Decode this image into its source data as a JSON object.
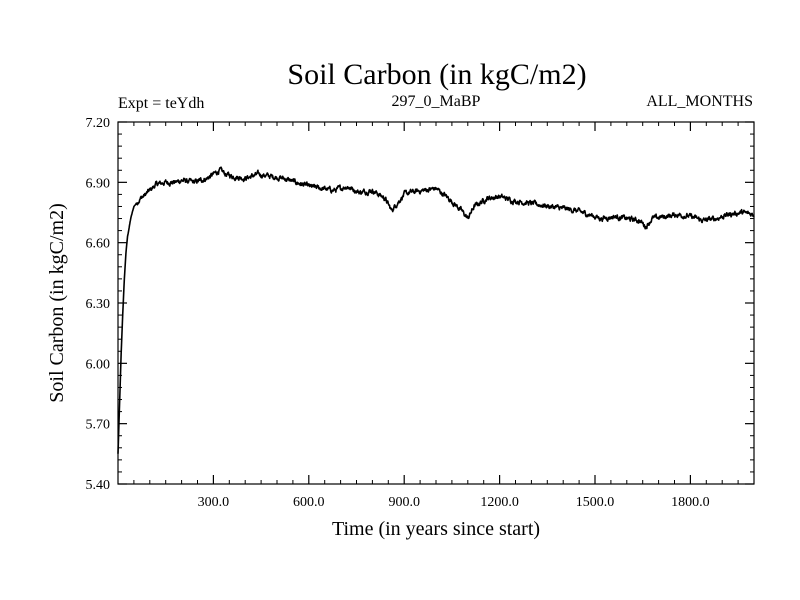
{
  "chart_data": {
    "type": "line",
    "title": "Soil Carbon (in kgC/m2)",
    "subtitle_left": "Expt = teYdh",
    "subtitle_center": "297_0_MaBP",
    "subtitle_right": "ALL_MONTHS",
    "xlabel": "Time (in years since start)",
    "ylabel": "Soil Carbon (in kgC/m2)",
    "xlim": [
      0,
      2000
    ],
    "ylim": [
      5.4,
      7.2
    ],
    "x_ticks": [
      300,
      600,
      900,
      1200,
      1500,
      1800
    ],
    "x_tick_labels": [
      "300.0",
      "600.0",
      "900.0",
      "1200.0",
      "1500.0",
      "1800.0"
    ],
    "y_ticks": [
      5.4,
      5.7,
      6.0,
      6.3,
      6.6,
      6.9,
      7.2
    ],
    "y_tick_labels": [
      "5.40",
      "5.70",
      "6.00",
      "6.30",
      "6.60",
      "6.90",
      "7.20"
    ],
    "grid": false,
    "series": [
      {
        "name": "Soil Carbon",
        "color": "#000000",
        "x": [
          0,
          5,
          10,
          15,
          20,
          25,
          30,
          40,
          50,
          60,
          70,
          80,
          100,
          120,
          150,
          180,
          200,
          240,
          280,
          300,
          320,
          340,
          360,
          400,
          440,
          480,
          520,
          560,
          600,
          640,
          680,
          720,
          760,
          800,
          840,
          860,
          880,
          900,
          920,
          960,
          1000,
          1040,
          1080,
          1100,
          1120,
          1160,
          1200,
          1240,
          1280,
          1320,
          1360,
          1400,
          1440,
          1480,
          1520,
          1560,
          1600,
          1640,
          1660,
          1680,
          1720,
          1760,
          1800,
          1840,
          1880,
          1920,
          1960,
          2000
        ],
        "values": [
          5.55,
          5.8,
          6.05,
          6.25,
          6.42,
          6.55,
          6.63,
          6.72,
          6.78,
          6.8,
          6.82,
          6.83,
          6.86,
          6.89,
          6.9,
          6.9,
          6.91,
          6.9,
          6.92,
          6.94,
          6.96,
          6.94,
          6.93,
          6.92,
          6.94,
          6.93,
          6.92,
          6.9,
          6.88,
          6.87,
          6.86,
          6.88,
          6.85,
          6.86,
          6.82,
          6.76,
          6.8,
          6.84,
          6.85,
          6.86,
          6.87,
          6.82,
          6.76,
          6.72,
          6.78,
          6.82,
          6.83,
          6.81,
          6.8,
          6.79,
          6.78,
          6.77,
          6.76,
          6.74,
          6.72,
          6.73,
          6.72,
          6.71,
          6.68,
          6.72,
          6.73,
          6.74,
          6.73,
          6.71,
          6.72,
          6.74,
          6.75,
          6.74
        ]
      }
    ]
  }
}
